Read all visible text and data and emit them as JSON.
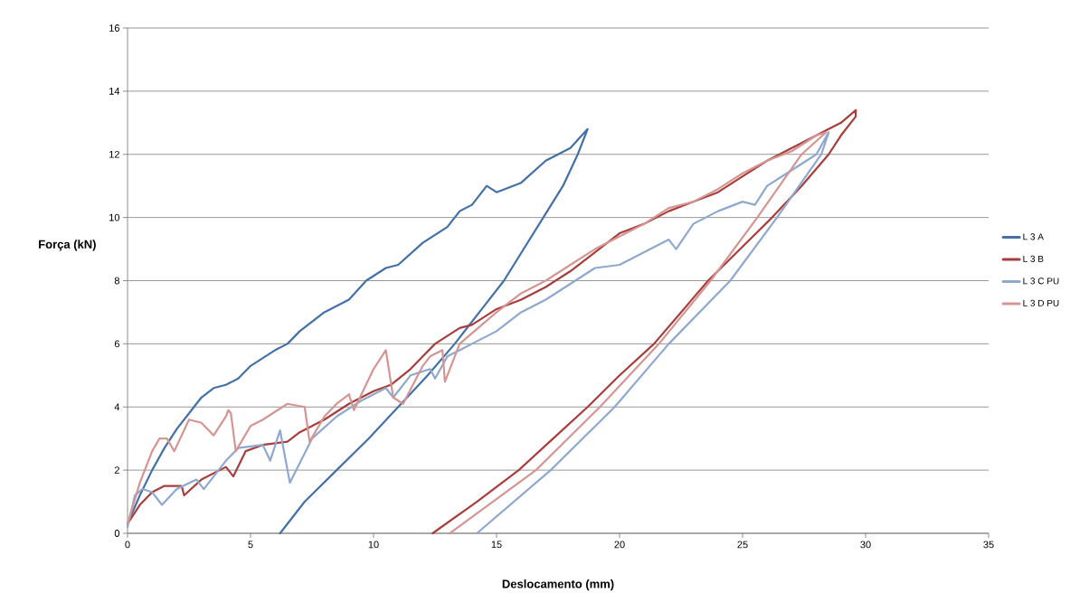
{
  "chart_data": {
    "type": "line",
    "xlabel": "Deslocamento (mm)",
    "ylabel": "Força (kN)",
    "xlim": [
      0,
      35
    ],
    "xticks": [
      0,
      5,
      10,
      15,
      20,
      25,
      30,
      35
    ],
    "ylim": [
      0,
      16
    ],
    "yticks": [
      0,
      2,
      4,
      6,
      8,
      10,
      12,
      14,
      16
    ],
    "grid": "y",
    "legend": "right",
    "series": [
      {
        "name": "L 3 A",
        "color": "#4470a8",
        "x": [
          0,
          0.5,
          1,
          1.5,
          2,
          2.5,
          3,
          3.5,
          4,
          4.5,
          5,
          6,
          6.5,
          7,
          8,
          9,
          9.7,
          10.5,
          11,
          12,
          13,
          13.5,
          14,
          14.6,
          15,
          16,
          17,
          17.5,
          18,
          18.7,
          18.3,
          17.7,
          16.9,
          16.1,
          15.3,
          14.3,
          13.3,
          12.2,
          11,
          9.8,
          8.5,
          7.2,
          6.2
        ],
        "values": [
          0.3,
          1.2,
          2.0,
          2.7,
          3.3,
          3.8,
          4.3,
          4.6,
          4.7,
          4.9,
          5.3,
          5.8,
          6.0,
          6.4,
          7.0,
          7.4,
          8,
          8.4,
          8.5,
          9.2,
          9.7,
          10.2,
          10.4,
          11,
          10.8,
          11.1,
          11.8,
          12,
          12.2,
          12.8,
          12,
          11,
          10,
          9,
          8,
          7,
          6,
          5,
          4,
          3,
          2,
          1,
          0
        ]
      },
      {
        "name": "L 3 B",
        "color": "#a83e3c",
        "x": [
          0,
          0.5,
          1,
          1.5,
          2.2,
          2.3,
          3,
          4,
          4.3,
          4.8,
          5.5,
          6.5,
          7,
          8,
          9,
          10,
          10.7,
          11.5,
          12,
          12.5,
          13.5,
          14,
          15,
          16,
          17,
          18,
          19,
          20,
          21,
          22,
          23,
          24,
          25,
          26,
          27,
          28,
          29,
          29.6,
          29.6,
          29,
          28.5,
          27.4,
          26.2,
          24.9,
          23.6,
          22.5,
          21.4,
          20,
          18.7,
          17.3,
          15.9,
          14.2,
          12.4
        ],
        "values": [
          0.3,
          0.9,
          1.3,
          1.5,
          1.5,
          1.2,
          1.7,
          2.1,
          1.8,
          2.6,
          2.8,
          2.9,
          3.2,
          3.6,
          4.1,
          4.5,
          4.7,
          5.2,
          5.6,
          6.0,
          6.5,
          6.6,
          7.1,
          7.4,
          7.8,
          8.3,
          8.9,
          9.5,
          9.8,
          10.2,
          10.5,
          10.8,
          11.3,
          11.8,
          12.2,
          12.6,
          13.0,
          13.4,
          13.2,
          12.6,
          12,
          11,
          10,
          9,
          8,
          7,
          6,
          5,
          4,
          3,
          2,
          1,
          0
        ]
      },
      {
        "name": "L 3 C PU",
        "color": "#8ea8d0",
        "x": [
          0,
          0.3,
          0.6,
          1,
          1.4,
          2,
          2.8,
          3.1,
          4,
          4.5,
          5.5,
          5.8,
          6.2,
          6.6,
          7.5,
          8.5,
          9.5,
          10.5,
          10.8,
          11.5,
          12.3,
          12.5,
          13,
          14,
          15,
          16,
          17,
          18,
          19,
          20,
          21,
          22,
          22.3,
          23,
          24,
          25,
          25.5,
          26,
          27,
          28,
          28.5,
          28.2,
          26.4,
          24.5,
          22.0,
          19.8,
          17.2,
          14.2
        ],
        "values": [
          0.2,
          1.2,
          1.4,
          1.3,
          0.9,
          1.4,
          1.7,
          1.4,
          2.3,
          2.7,
          2.8,
          2.3,
          3.26,
          1.6,
          3.0,
          3.7,
          4.2,
          4.6,
          4.3,
          5.0,
          5.2,
          4.9,
          5.6,
          6.0,
          6.4,
          7.0,
          7.4,
          7.9,
          8.4,
          8.5,
          8.9,
          9.3,
          9.0,
          9.8,
          10.2,
          10.5,
          10.4,
          11.0,
          11.5,
          12.0,
          12.7,
          12,
          10,
          8,
          6,
          4,
          2,
          0
        ]
      },
      {
        "name": "L 3 D PU",
        "color": "#d49593",
        "x": [
          0,
          0.5,
          1,
          1.3,
          1.6,
          1.9,
          2.5,
          3,
          3.5,
          4,
          4.1,
          4.2,
          4.4,
          5,
          5.5,
          6.5,
          7.2,
          7.4,
          8,
          8.5,
          9,
          9.2,
          10,
          10.5,
          10.8,
          11.2,
          12,
          12.3,
          12.8,
          12.9,
          13.5,
          15,
          16,
          17,
          18,
          19,
          20,
          21,
          22,
          23,
          24,
          25,
          26,
          27,
          28,
          28.4,
          27.4,
          25.6,
          23.7,
          21.6,
          19.2,
          16.6,
          13.1
        ],
        "values": [
          0.3,
          1.6,
          2.6,
          3.0,
          3.0,
          2.6,
          3.6,
          3.5,
          3.1,
          3.7,
          3.9,
          3.8,
          2.6,
          3.4,
          3.6,
          4.1,
          4.0,
          2.9,
          3.7,
          4.1,
          4.4,
          3.9,
          5.2,
          5.8,
          4.3,
          4.1,
          5.3,
          5.6,
          5.8,
          4.8,
          6.0,
          7.0,
          7.6,
          8.0,
          8.5,
          9.0,
          9.4,
          9.8,
          10.3,
          10.5,
          10.9,
          11.4,
          11.8,
          12.1,
          12.6,
          12.7,
          12,
          10,
          8,
          6,
          4,
          2,
          0
        ]
      }
    ]
  }
}
